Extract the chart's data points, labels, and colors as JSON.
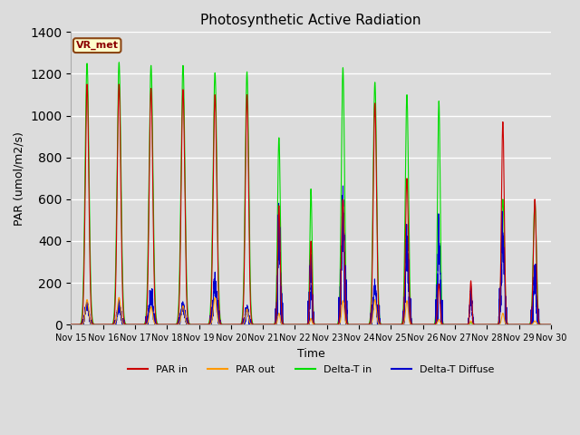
{
  "title": "Photosynthetic Active Radiation",
  "xlabel": "Time",
  "ylabel": "PAR (umol/m2/s)",
  "ylim": [
    0,
    1400
  ],
  "label_text": "VR_met",
  "series": {
    "par_in": {
      "color": "#cc0000",
      "label": "PAR in"
    },
    "par_out": {
      "color": "#ff9900",
      "label": "PAR out"
    },
    "delta_t_in": {
      "color": "#00dd00",
      "label": "Delta-T in"
    },
    "delta_t_diffuse": {
      "color": "#0000cc",
      "label": "Delta-T Diffuse"
    }
  },
  "xtick_labels": [
    "Nov 15",
    "Nov 16",
    "Nov 17",
    "Nov 18",
    "Nov 19",
    "Nov 20",
    "Nov 21",
    "Nov 22",
    "Nov 23",
    "Nov 24",
    "Nov 25",
    "Nov 26",
    "Nov 27",
    "Nov 28",
    "Nov 29",
    "Nov 30"
  ],
  "background_color": "#dcdcdc",
  "plot_bg_color": "#dcdcdc",
  "fig_color": "#dcdcdc",
  "grid_color": "#ffffff",
  "day_params": [
    {
      "pi": 1150,
      "po": 120,
      "dti": 1250,
      "dtd": 95,
      "wf": 0.055
    },
    {
      "pi": 1150,
      "po": 130,
      "dti": 1255,
      "dtd": 85,
      "wf": 0.055
    },
    {
      "pi": 1130,
      "po": 85,
      "dti": 1240,
      "dtd": 140,
      "wf": 0.055
    },
    {
      "pi": 1125,
      "po": 90,
      "dti": 1240,
      "dtd": 90,
      "wf": 0.055
    },
    {
      "pi": 1100,
      "po": 130,
      "dti": 1205,
      "dtd": 200,
      "wf": 0.055
    },
    {
      "pi": 1100,
      "po": 75,
      "dti": 1210,
      "dtd": 75,
      "wf": 0.05
    },
    {
      "pi": 570,
      "po": 55,
      "dti": 895,
      "dtd": 465,
      "wf": 0.04
    },
    {
      "pi": 400,
      "po": 30,
      "dti": 650,
      "dtd": 285,
      "wf": 0.032
    },
    {
      "pi": 600,
      "po": 115,
      "dti": 1230,
      "dtd": 545,
      "wf": 0.045
    },
    {
      "pi": 1060,
      "po": 120,
      "dti": 1160,
      "dtd": 185,
      "wf": 0.05
    },
    {
      "pi": 700,
      "po": 115,
      "dti": 1100,
      "dtd": 410,
      "wf": 0.045
    },
    {
      "pi": 195,
      "po": 25,
      "dti": 1070,
      "dtd": 410,
      "wf": 0.038
    },
    {
      "pi": 210,
      "po": 18,
      "dti": 10,
      "dtd": 170,
      "wf": 0.03
    },
    {
      "pi": 970,
      "po": 55,
      "dti": 600,
      "dtd": 415,
      "wf": 0.043
    },
    {
      "pi": 600,
      "po": 18,
      "dti": 590,
      "dtd": 235,
      "wf": 0.045
    }
  ]
}
